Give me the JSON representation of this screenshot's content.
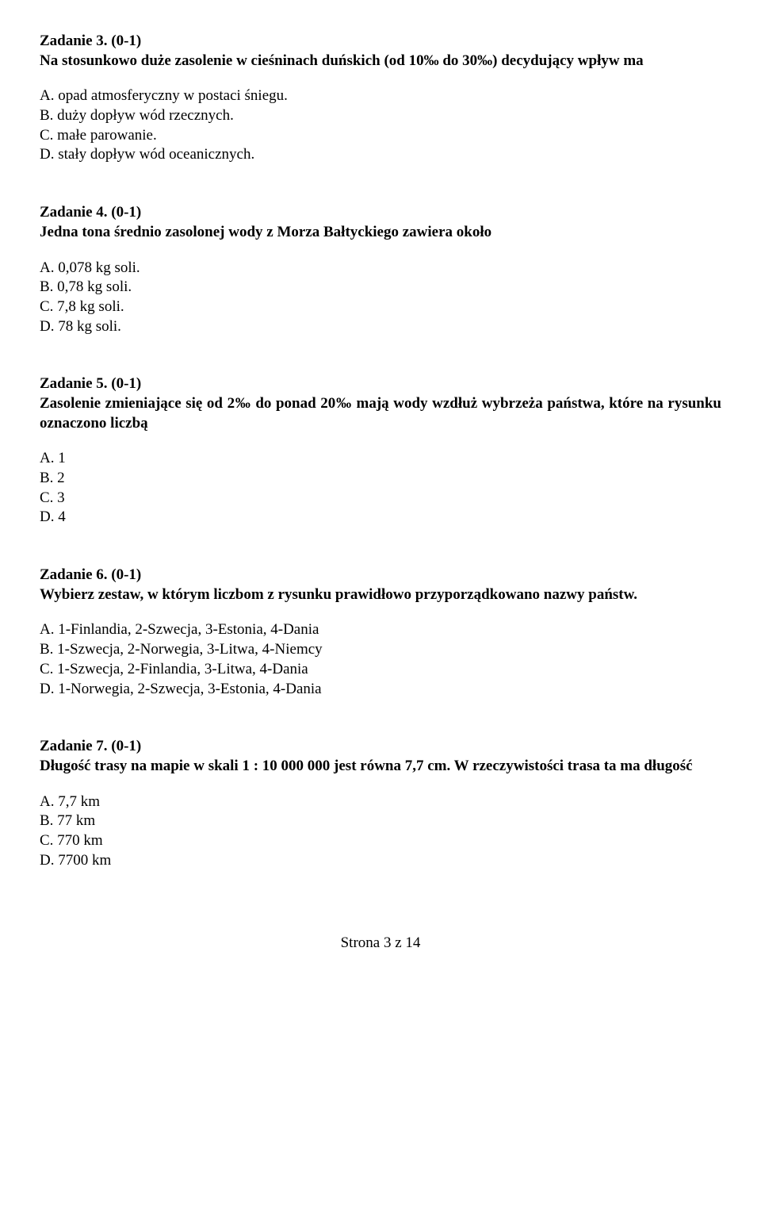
{
  "tasks": [
    {
      "title": "Zadanie 3. (0-1)",
      "prompt": "Na stosunkowo duże zasolenie w cieśninach duńskich (od 10‰ do 30‰) decydujący wpływ ma",
      "options": [
        "A. opad atmosferyczny w postaci śniegu.",
        "B. duży dopływ wód rzecznych.",
        "C. małe parowanie.",
        "D. stały dopływ wód oceanicznych."
      ]
    },
    {
      "title": "Zadanie 4. (0-1)",
      "prompt": "Jedna tona średnio zasolonej wody z Morza Bałtyckiego zawiera około",
      "options": [
        "A. 0,078 kg soli.",
        "B. 0,78 kg soli.",
        "C. 7,8 kg soli.",
        "D. 78 kg soli."
      ]
    },
    {
      "title": "Zadanie 5. (0-1)",
      "prompt": "Zasolenie zmieniające się od 2‰ do ponad 20‰ mają wody wzdłuż wybrzeża państwa, które na rysunku oznaczono liczbą",
      "options": [
        "A. 1",
        "B. 2",
        "C. 3",
        "D. 4"
      ]
    },
    {
      "title": "Zadanie 6. (0-1)",
      "prompt": "Wybierz zestaw, w którym liczbom z rysunku prawidłowo przyporządkowano nazwy państw.",
      "options": [
        "A. 1-Finlandia, 2-Szwecja, 3-Estonia, 4-Dania",
        "B. 1-Szwecja, 2-Norwegia, 3-Litwa, 4-Niemcy",
        "C. 1-Szwecja, 2-Finlandia, 3-Litwa, 4-Dania",
        "D. 1-Norwegia, 2-Szwecja, 3-Estonia, 4-Dania"
      ]
    },
    {
      "title": "Zadanie 7. (0-1)",
      "prompt": "Długość trasy na mapie w skali 1 : 10 000 000 jest równa 7,7 cm. W rzeczywistości trasa ta ma długość",
      "options": [
        "A. 7,7 km",
        "B. 77 km",
        "C. 770 km",
        "D. 7700 km"
      ]
    }
  ],
  "footer": "Strona 3 z 14"
}
